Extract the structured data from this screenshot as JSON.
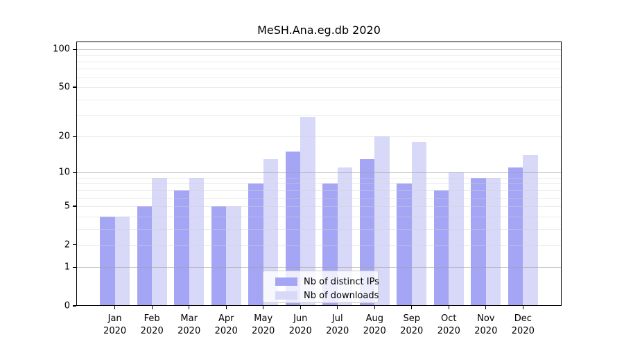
{
  "title": "MeSH.Ana.eg.db 2020",
  "chart_data": {
    "type": "bar",
    "title": "MeSH.Ana.eg.db 2020",
    "categories": [
      "Jan 2020",
      "Feb 2020",
      "Mar 2020",
      "Apr 2020",
      "May 2020",
      "Jun 2020",
      "Jul 2020",
      "Aug 2020",
      "Sep 2020",
      "Oct 2020",
      "Nov 2020",
      "Dec 2020"
    ],
    "series": [
      {
        "name": "Nb of distinct IPs",
        "color": "#a5a5f5",
        "values": [
          4,
          5,
          7,
          5,
          8,
          15,
          8,
          13,
          8,
          7,
          9,
          11
        ]
      },
      {
        "name": "Nb of downloads",
        "color": "#d8d8f8",
        "values": [
          4,
          9,
          9,
          5,
          13,
          29,
          11,
          20,
          18,
          10,
          9,
          14
        ]
      }
    ],
    "xlabel": "",
    "ylabel": "",
    "yscale": "log1p",
    "ylim": [
      0,
      115
    ],
    "yticks": [
      0,
      1,
      2,
      5,
      10,
      20,
      50,
      100
    ],
    "grid_major": [
      1,
      10,
      100
    ],
    "grid_minor": [
      2,
      3,
      4,
      5,
      6,
      7,
      8,
      9,
      20,
      30,
      40,
      50,
      60,
      70,
      80,
      90
    ],
    "grid": true,
    "legend_position": "lower center"
  },
  "colors": {
    "axis": "#000000",
    "grid_major": "rgba(160,160,160,0.55)",
    "grid_minor": "rgba(210,210,210,0.45)",
    "background": "#ffffff",
    "legend_border": "#cccccc"
  }
}
